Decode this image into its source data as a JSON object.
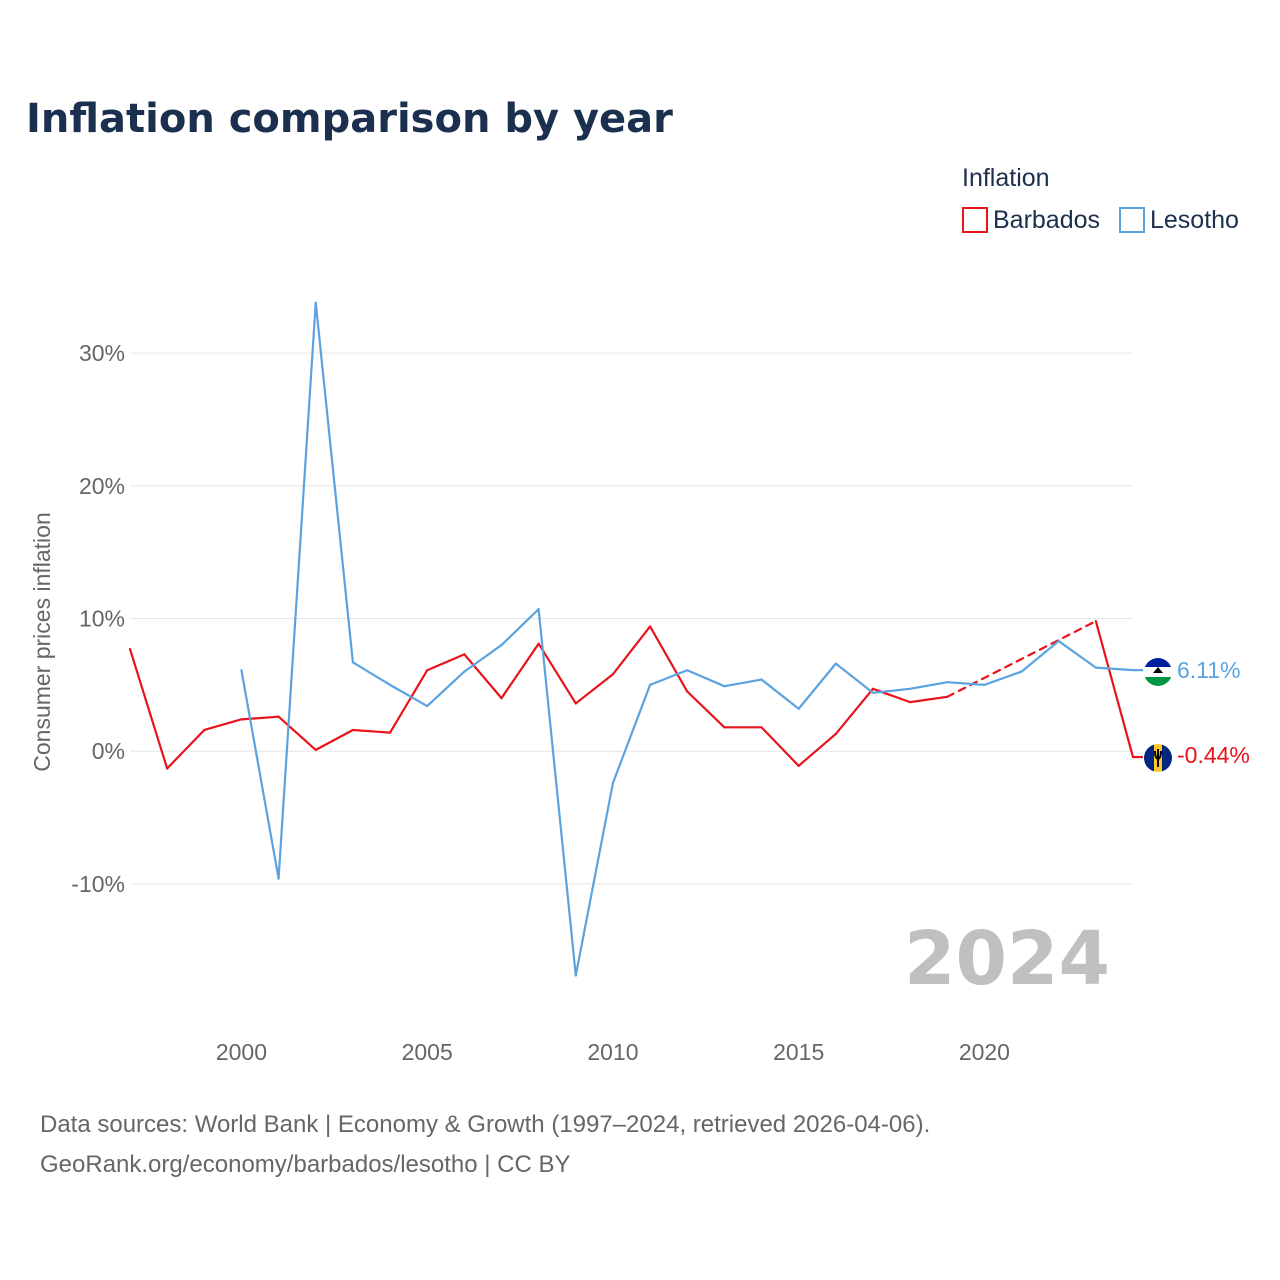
{
  "title": "Inflation comparison by year",
  "legend": {
    "title": "Inflation",
    "items": [
      {
        "name": "Barbados",
        "color": "#e8131b"
      },
      {
        "name": "Lesotho",
        "color": "#5ba3e0"
      }
    ]
  },
  "year_watermark": "2024",
  "source": {
    "line1": "Data sources: World Bank | Economy & Growth (1997–2024, retrieved 2026-04-06).",
    "line2": "GeoRank.org/economy/barbados/lesotho | CC BY"
  },
  "chart_data": {
    "type": "line",
    "ylabel": "Consumer prices inflation",
    "xlabel": "",
    "xlim": [
      1997,
      2024
    ],
    "ylim": [
      -19.5,
      34
    ],
    "x_ticks": [
      {
        "value": 2000,
        "label": "2000"
      },
      {
        "value": 2005,
        "label": "2005"
      },
      {
        "value": 2010,
        "label": "2010"
      },
      {
        "value": 2015,
        "label": "2015"
      },
      {
        "value": 2020,
        "label": "2020"
      }
    ],
    "y_ticks": [
      {
        "value": 30,
        "label": "30%"
      },
      {
        "value": 20,
        "label": "20%"
      },
      {
        "value": 10,
        "label": "10%"
      },
      {
        "value": 0,
        "label": "0%"
      },
      {
        "value": -10,
        "label": "-10%"
      }
    ],
    "grid": true,
    "legend_position": "top-right",
    "series": [
      {
        "name": "Barbados",
        "color": "#e8131b",
        "end_label": "-0.44%",
        "dashed_segments": [
          [
            2019,
            2023
          ]
        ],
        "points": [
          [
            1997,
            7.7
          ],
          [
            1998,
            -1.3
          ],
          [
            1999,
            1.6
          ],
          [
            2000,
            2.4
          ],
          [
            2001,
            2.6
          ],
          [
            2002,
            0.1
          ],
          [
            2003,
            1.6
          ],
          [
            2004,
            1.4
          ],
          [
            2005,
            6.1
          ],
          [
            2006,
            7.3
          ],
          [
            2007,
            4.0
          ],
          [
            2008,
            8.1
          ],
          [
            2009,
            3.6
          ],
          [
            2010,
            5.8
          ],
          [
            2011,
            9.4
          ],
          [
            2012,
            4.5
          ],
          [
            2013,
            1.8
          ],
          [
            2014,
            1.8
          ],
          [
            2015,
            -1.1
          ],
          [
            2016,
            1.3
          ],
          [
            2017,
            4.7
          ],
          [
            2018,
            3.7
          ],
          [
            2019,
            4.1
          ],
          [
            2023,
            9.8
          ],
          [
            2024,
            -0.44
          ]
        ]
      },
      {
        "name": "Lesotho",
        "color": "#5ba3e0",
        "end_label": "6.11%",
        "dashed_segments": [],
        "points": [
          [
            2000,
            6.1
          ],
          [
            2001,
            -9.6
          ],
          [
            2002,
            33.8
          ],
          [
            2003,
            6.7
          ],
          [
            2004,
            5.0
          ],
          [
            2005,
            3.4
          ],
          [
            2006,
            6.0
          ],
          [
            2007,
            8.0
          ],
          [
            2008,
            10.7
          ],
          [
            2009,
            -16.9
          ],
          [
            2010,
            -2.4
          ],
          [
            2011,
            5.0
          ],
          [
            2012,
            6.1
          ],
          [
            2013,
            4.9
          ],
          [
            2014,
            5.4
          ],
          [
            2015,
            3.2
          ],
          [
            2016,
            6.6
          ],
          [
            2017,
            4.4
          ],
          [
            2018,
            4.7
          ],
          [
            2019,
            5.2
          ],
          [
            2020,
            5.0
          ],
          [
            2021,
            6.0
          ],
          [
            2022,
            8.3
          ],
          [
            2023,
            6.3
          ],
          [
            2024,
            6.11
          ]
        ]
      }
    ]
  }
}
